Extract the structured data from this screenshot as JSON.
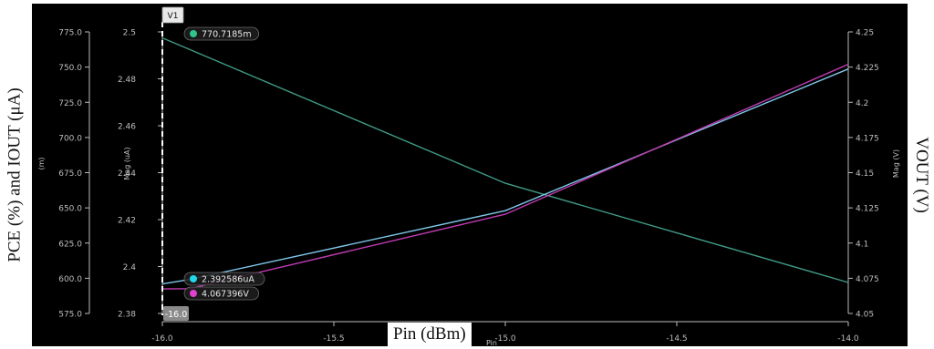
{
  "figure": {
    "left_axis_label": "PCE (%) and IOUT (μA)",
    "right_axis_label": "VOUT (V)",
    "bottom_axis_label": "Pin (dBm)",
    "bottom_axis_sub_label": "Pin",
    "inner_left_unit_label": "(m)",
    "inner_left_axis_label": "Mag (uA)",
    "inner_right_axis_label": "Mag (V)"
  },
  "colors": {
    "background": "#000000",
    "axis": "#bdbdbd",
    "pce": "#3f9a86",
    "iout": "#7fc6e8",
    "vout": "#c23bb3",
    "marker_green": "#2fc48a",
    "marker_cyan": "#22d8e8",
    "marker_magenta": "#e040d0",
    "cursor": "#ffffff"
  },
  "cursor": {
    "name": "V1",
    "x_label": "-16.0"
  },
  "markers": [
    {
      "text": "770.7185m",
      "color": "#2fc48a",
      "series": "PCE"
    },
    {
      "text": "2.392586uA",
      "color": "#22d8e8",
      "series": "IOUT"
    },
    {
      "text": "4.067396V",
      "color": "#e040d0",
      "series": "VOUT"
    }
  ],
  "chart_data": {
    "type": "line",
    "x": [
      -16.0,
      -15.0,
      -14.0
    ],
    "xlim": [
      -16.0,
      -14.0
    ],
    "x_ticks": [
      "-16.0",
      "-15.5",
      "-15.0",
      "-14.5",
      "-14.0"
    ],
    "axes": {
      "left_outer": {
        "ylim": [
          575.0,
          775.0
        ],
        "ticks": [
          "775.0",
          "750.0",
          "725.0",
          "700.0",
          "675.0",
          "650.0",
          "625.0",
          "600.0",
          "575.0"
        ]
      },
      "left_inner": {
        "ylim": [
          2.38,
          2.5
        ],
        "ticks": [
          "2.5",
          "2.48",
          "2.46",
          "2.44",
          "2.42",
          "2.4",
          "2.38"
        ]
      },
      "right": {
        "ylim": [
          4.05,
          4.25
        ],
        "ticks": [
          "4.25",
          "4.225",
          "4.2",
          "4.175",
          "4.15",
          "4.125",
          "4.1",
          "4.075",
          "4.05"
        ]
      }
    },
    "series": [
      {
        "key": "pce",
        "axis": "left_outer",
        "color": "#3f9a86",
        "points": [
          [
            -16.0,
            770.7
          ],
          [
            -15.0,
            667.5
          ],
          [
            -14.0,
            597.0
          ]
        ]
      },
      {
        "key": "iout",
        "axis": "left_inner",
        "color": "#7fc6e8",
        "points": [
          [
            -16.0,
            2.3926
          ],
          [
            -15.92,
            2.3945
          ],
          [
            -15.0,
            2.4238
          ],
          [
            -14.0,
            2.4842
          ]
        ]
      },
      {
        "key": "vout",
        "axis": "right",
        "color": "#c23bb3",
        "points": [
          [
            -16.0,
            4.0674
          ],
          [
            -15.92,
            4.0676
          ],
          [
            -15.0,
            4.1205
          ],
          [
            -14.0,
            4.227
          ]
        ]
      }
    ],
    "grid": false
  }
}
